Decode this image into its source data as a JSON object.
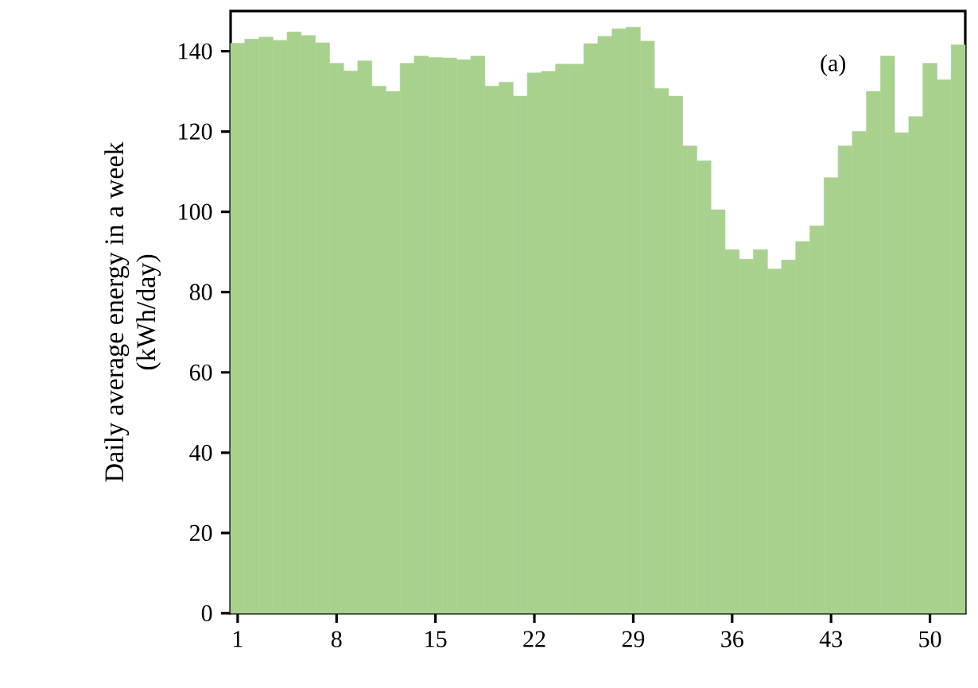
{
  "chart_data": {
    "type": "bar",
    "ylabel": "Daily average energy in a week\n(kWh/day)",
    "categories": [
      "1",
      null,
      null,
      null,
      null,
      null,
      null,
      "8",
      null,
      null,
      null,
      null,
      null,
      null,
      "15",
      null,
      null,
      null,
      null,
      null,
      null,
      "22",
      null,
      null,
      null,
      null,
      null,
      null,
      "29",
      null,
      null,
      null,
      null,
      null,
      null,
      "36",
      null,
      null,
      null,
      null,
      null,
      null,
      "43",
      null,
      null,
      null,
      null,
      null,
      null,
      "50",
      null,
      null
    ],
    "values": [
      142,
      143,
      143.5,
      142.7,
      144.8,
      143.9,
      142.1,
      137,
      135.1,
      137.6,
      131.3,
      130,
      137,
      138.8,
      138.4,
      138.3,
      137.9,
      138.8,
      131.3,
      132.3,
      128.8,
      134.6,
      135,
      136.8,
      136.8,
      141.9,
      143.7,
      145.6,
      146,
      142.5,
      130.7,
      128.8,
      116.4,
      112.7,
      100.5,
      90.6,
      88.2,
      90.6,
      85.8,
      88,
      92.6,
      96.5,
      108.5,
      116.4,
      120,
      130,
      138.8,
      119.7,
      123.7,
      137,
      132.9,
      141.6
    ],
    "color": "#a9d18e",
    "ylim": [
      0,
      150
    ],
    "yticks": [
      0,
      20,
      40,
      60,
      80,
      100,
      120,
      140
    ],
    "annotations": [
      "(a)"
    ]
  }
}
